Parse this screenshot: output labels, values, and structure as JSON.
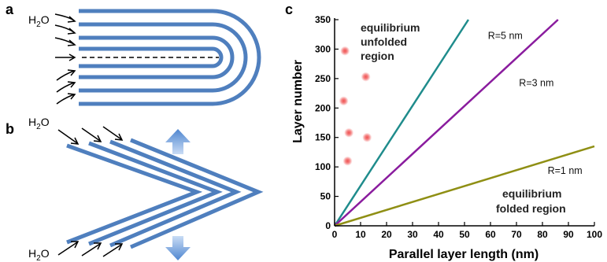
{
  "panel_a": {
    "letter": "a",
    "h2o": {
      "base": "H",
      "sub": "2",
      "tail": "O"
    }
  },
  "panel_b": {
    "letter": "b",
    "h2o_top": {
      "base": "H",
      "sub": "2",
      "tail": "O"
    },
    "h2o_bottom": {
      "base": "H",
      "sub": "2",
      "tail": "O"
    }
  },
  "panel_c": {
    "letter": "c",
    "region_unfolded": [
      "equilibrium",
      "unfolded",
      "region"
    ],
    "region_folded": [
      "equilibrium",
      "folded region"
    ]
  },
  "colors": {
    "layer": "#4f7fbe",
    "pump_arrow": "#5b8fd6",
    "point": "#f05050"
  },
  "chart_data": {
    "type": "scatter",
    "xlabel": "Parallel layer length (nm)",
    "ylabel": "Layer number",
    "xlim": [
      0,
      100
    ],
    "ylim": [
      0,
      350
    ],
    "xticks": [
      0,
      10,
      20,
      30,
      40,
      50,
      60,
      70,
      80,
      90,
      100
    ],
    "yticks": [
      0,
      50,
      100,
      150,
      200,
      250,
      300,
      350
    ],
    "points": [
      {
        "x": 4,
        "y": 297
      },
      {
        "x": 3.5,
        "y": 212
      },
      {
        "x": 5.5,
        "y": 158
      },
      {
        "x": 5,
        "y": 110
      },
      {
        "x": 12,
        "y": 253
      },
      {
        "x": 12.5,
        "y": 150
      }
    ],
    "lines": [
      {
        "label": "R=5 nm",
        "color": "#1f8c8c",
        "from": [
          0,
          0
        ],
        "to": [
          51.5,
          350
        ],
        "label_at": [
          59,
          317
        ]
      },
      {
        "label": "R=3 nm",
        "color": "#8a1c9e",
        "from": [
          0,
          0
        ],
        "to": [
          86,
          350
        ],
        "label_at": [
          71,
          237
        ]
      },
      {
        "label": "R=1 nm",
        "color": "#8f8f14",
        "from": [
          0,
          0
        ],
        "to": [
          100,
          135
        ],
        "label_at": [
          82,
          88
        ]
      }
    ]
  }
}
